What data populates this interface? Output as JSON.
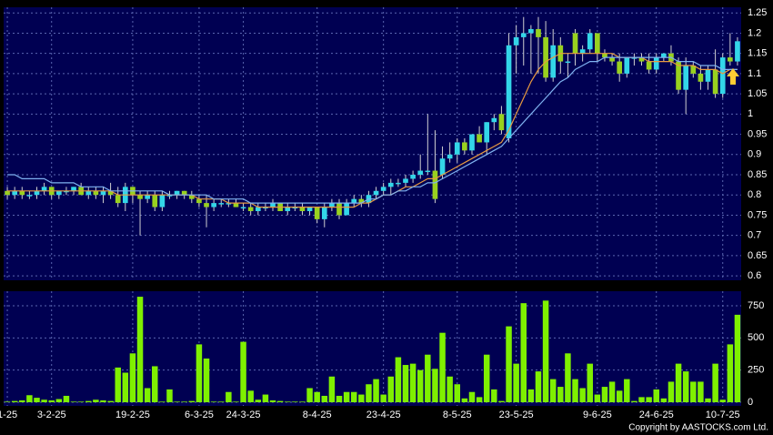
{
  "chart_data": [
    {
      "type": "candlestick",
      "categories": [
        "1-25",
        null,
        null,
        null,
        null,
        null,
        "3-2-25",
        null,
        null,
        null,
        null,
        null,
        null,
        null,
        null,
        null,
        null,
        "19-2-25",
        null,
        null,
        null,
        null,
        null,
        null,
        null,
        null,
        "6-3-25",
        null,
        null,
        null,
        null,
        null,
        "24-3-25",
        null,
        null,
        null,
        null,
        null,
        null,
        null,
        null,
        null,
        "8-4-25",
        null,
        null,
        null,
        null,
        null,
        null,
        null,
        null,
        "23-4-25",
        null,
        null,
        null,
        null,
        null,
        null,
        null,
        null,
        null,
        "8-5-25",
        null,
        null,
        null,
        null,
        null,
        null,
        null,
        "23-5-25",
        null,
        null,
        null,
        null,
        null,
        null,
        null,
        null,
        null,
        null,
        "9-6-25",
        null,
        null,
        null,
        null,
        null,
        null,
        null,
        "24-6-25",
        null,
        null,
        null,
        null,
        null,
        null,
        null,
        null,
        "10-7-25",
        null,
        null
      ],
      "open": [
        0.81,
        0.8,
        0.81,
        0.8,
        0.8,
        0.81,
        0.82,
        0.8,
        0.81,
        0.81,
        0.82,
        0.8,
        0.81,
        0.8,
        0.81,
        0.8,
        0.78,
        0.82,
        0.8,
        0.79,
        0.8,
        0.77,
        0.8,
        0.8,
        0.81,
        0.8,
        0.79,
        0.78,
        0.77,
        0.78,
        0.78,
        0.78,
        0.77,
        0.77,
        0.76,
        0.77,
        0.77,
        0.78,
        0.76,
        0.77,
        0.77,
        0.76,
        0.77,
        0.74,
        0.77,
        0.78,
        0.75,
        0.78,
        0.79,
        0.78,
        0.8,
        0.81,
        0.82,
        0.83,
        0.83,
        0.84,
        0.85,
        0.86,
        0.86,
        0.85,
        0.89,
        0.9,
        0.93,
        0.91,
        0.95,
        0.93,
        0.98,
        1.0,
        0.94,
        1.17,
        1.19,
        1.2,
        1.21,
        1.19,
        1.09,
        1.17,
        1.13,
        1.2,
        1.15,
        1.16,
        1.2,
        1.15,
        1.14,
        1.13,
        1.1,
        1.14,
        1.14,
        1.13,
        1.11,
        1.14,
        1.15,
        1.13,
        1.06,
        1.12,
        1.1,
        1.08,
        1.11,
        1.05,
        1.14,
        1.13
      ],
      "high": [
        0.82,
        0.82,
        0.82,
        0.81,
        0.82,
        0.83,
        0.82,
        0.81,
        0.82,
        0.82,
        0.83,
        0.82,
        0.82,
        0.82,
        0.83,
        0.82,
        0.83,
        0.82,
        0.81,
        0.81,
        0.81,
        0.81,
        0.81,
        0.81,
        0.81,
        0.81,
        0.8,
        0.8,
        0.79,
        0.79,
        0.79,
        0.79,
        0.78,
        0.78,
        0.78,
        0.78,
        0.79,
        0.78,
        0.78,
        0.78,
        0.78,
        0.77,
        0.77,
        0.78,
        0.79,
        0.79,
        0.79,
        0.8,
        0.8,
        0.81,
        0.82,
        0.83,
        0.84,
        0.84,
        0.85,
        0.86,
        0.9,
        1.0,
        0.96,
        0.92,
        0.93,
        0.94,
        0.94,
        0.95,
        0.97,
        0.98,
        1.0,
        1.02,
        1.2,
        1.22,
        1.24,
        1.22,
        1.24,
        1.23,
        1.21,
        1.19,
        1.15,
        1.21,
        1.17,
        1.21,
        1.2,
        1.16,
        1.15,
        1.15,
        1.14,
        1.15,
        1.15,
        1.15,
        1.15,
        1.15,
        1.17,
        1.14,
        1.14,
        1.13,
        1.12,
        1.12,
        1.16,
        1.15,
        1.2,
        1.19
      ],
      "low": [
        0.79,
        0.79,
        0.79,
        0.79,
        0.79,
        0.8,
        0.79,
        0.79,
        0.8,
        0.8,
        0.8,
        0.79,
        0.79,
        0.78,
        0.79,
        0.77,
        0.76,
        0.78,
        0.7,
        0.78,
        0.76,
        0.76,
        0.79,
        0.79,
        0.79,
        0.78,
        0.77,
        0.72,
        0.76,
        0.77,
        0.77,
        0.77,
        0.76,
        0.75,
        0.75,
        0.76,
        0.76,
        0.76,
        0.75,
        0.76,
        0.75,
        0.75,
        0.73,
        0.72,
        0.76,
        0.74,
        0.75,
        0.77,
        0.77,
        0.77,
        0.79,
        0.8,
        0.8,
        0.82,
        0.82,
        0.83,
        0.84,
        0.85,
        0.78,
        0.84,
        0.88,
        0.88,
        0.9,
        0.9,
        0.93,
        0.9,
        0.96,
        0.95,
        0.93,
        1.1,
        1.12,
        1.1,
        1.1,
        1.08,
        1.08,
        1.1,
        1.09,
        1.12,
        1.13,
        1.15,
        1.13,
        1.13,
        1.12,
        1.08,
        1.09,
        1.12,
        1.12,
        1.1,
        1.1,
        1.13,
        1.12,
        1.05,
        1.0,
        1.09,
        1.06,
        1.06,
        1.04,
        1.04,
        1.12,
        1.12
      ],
      "close": [
        0.8,
        0.81,
        0.8,
        0.8,
        0.81,
        0.82,
        0.8,
        0.81,
        0.81,
        0.82,
        0.8,
        0.81,
        0.8,
        0.81,
        0.8,
        0.78,
        0.82,
        0.8,
        0.79,
        0.8,
        0.77,
        0.8,
        0.8,
        0.81,
        0.8,
        0.79,
        0.78,
        0.77,
        0.78,
        0.78,
        0.78,
        0.77,
        0.77,
        0.76,
        0.77,
        0.77,
        0.78,
        0.76,
        0.77,
        0.77,
        0.76,
        0.77,
        0.74,
        0.77,
        0.78,
        0.75,
        0.78,
        0.79,
        0.78,
        0.8,
        0.81,
        0.82,
        0.83,
        0.83,
        0.84,
        0.85,
        0.86,
        0.86,
        0.79,
        0.89,
        0.9,
        0.93,
        0.91,
        0.95,
        0.93,
        0.98,
        0.99,
        0.96,
        1.17,
        1.19,
        1.2,
        1.21,
        1.19,
        1.09,
        1.17,
        1.13,
        1.13,
        1.15,
        1.16,
        1.2,
        1.15,
        1.14,
        1.13,
        1.1,
        1.14,
        1.14,
        1.13,
        1.11,
        1.14,
        1.15,
        1.13,
        1.06,
        1.12,
        1.1,
        1.08,
        1.11,
        1.05,
        1.14,
        1.13,
        1.18
      ],
      "up_color": "#33d6e8",
      "down_color": "#99d11f",
      "moving_averages": [
        {
          "color": "#e89a40",
          "values": [
            0.81,
            0.81,
            0.81,
            0.81,
            0.81,
            0.81,
            0.81,
            0.81,
            0.81,
            0.81,
            0.81,
            0.81,
            0.81,
            0.81,
            0.81,
            0.8,
            0.8,
            0.8,
            0.8,
            0.8,
            0.8,
            0.8,
            0.8,
            0.8,
            0.8,
            0.8,
            0.79,
            0.79,
            0.79,
            0.79,
            0.78,
            0.78,
            0.78,
            0.78,
            0.77,
            0.77,
            0.77,
            0.77,
            0.77,
            0.77,
            0.77,
            0.77,
            0.77,
            0.77,
            0.77,
            0.77,
            0.77,
            0.77,
            0.78,
            0.78,
            0.79,
            0.8,
            0.8,
            0.81,
            0.82,
            0.82,
            0.83,
            0.84,
            0.84,
            0.85,
            0.86,
            0.87,
            0.88,
            0.89,
            0.9,
            0.91,
            0.92,
            0.93,
            0.96,
            1.0,
            1.04,
            1.08,
            1.11,
            1.13,
            1.14,
            1.15,
            1.15,
            1.15,
            1.15,
            1.15,
            1.15,
            1.15,
            1.15,
            1.14,
            1.14,
            1.14,
            1.14,
            1.13,
            1.13,
            1.13,
            1.13,
            1.12,
            1.12,
            1.12,
            1.11,
            1.11,
            1.11,
            1.1,
            1.11,
            1.11
          ]
        },
        {
          "color": "#7fb2f0",
          "values": [
            0.85,
            0.85,
            0.84,
            0.84,
            0.84,
            0.84,
            0.83,
            0.83,
            0.83,
            0.83,
            0.82,
            0.82,
            0.82,
            0.82,
            0.81,
            0.81,
            0.81,
            0.81,
            0.81,
            0.81,
            0.81,
            0.81,
            0.8,
            0.8,
            0.8,
            0.8,
            0.8,
            0.8,
            0.79,
            0.79,
            0.79,
            0.79,
            0.79,
            0.78,
            0.78,
            0.78,
            0.78,
            0.78,
            0.78,
            0.78,
            0.78,
            0.78,
            0.78,
            0.78,
            0.78,
            0.78,
            0.78,
            0.78,
            0.78,
            0.79,
            0.79,
            0.8,
            0.8,
            0.81,
            0.81,
            0.82,
            0.82,
            0.83,
            0.83,
            0.84,
            0.85,
            0.86,
            0.87,
            0.88,
            0.89,
            0.9,
            0.91,
            0.92,
            0.94,
            0.96,
            0.98,
            1.0,
            1.02,
            1.04,
            1.06,
            1.08,
            1.09,
            1.11,
            1.12,
            1.13,
            1.13,
            1.14,
            1.14,
            1.14,
            1.14,
            1.14,
            1.14,
            1.14,
            1.14,
            1.14,
            1.14,
            1.13,
            1.13,
            1.13,
            1.12,
            1.12,
            1.12,
            1.11,
            1.11,
            1.11
          ]
        }
      ],
      "ylim": [
        0.589,
        1.264
      ],
      "yticks": [
        0.6,
        0.65,
        0.7,
        0.75,
        0.8,
        0.85,
        0.9,
        0.95,
        1,
        1.05,
        1.1,
        1.15,
        1.2,
        1.25
      ],
      "grid": true
    },
    {
      "type": "bar",
      "values": [
        5,
        10,
        15,
        55,
        35,
        20,
        15,
        25,
        50,
        5,
        5,
        10,
        20,
        15,
        10,
        270,
        230,
        380,
        820,
        110,
        280,
        5,
        100,
        5,
        5,
        10,
        450,
        340,
        5,
        5,
        80,
        5,
        470,
        90,
        20,
        60,
        15,
        10,
        5,
        5,
        5,
        110,
        80,
        50,
        200,
        50,
        80,
        80,
        60,
        140,
        180,
        60,
        200,
        350,
        290,
        300,
        250,
        370,
        260,
        540,
        200,
        140,
        30,
        80,
        40,
        370,
        100,
        10,
        590,
        300,
        770,
        100,
        240,
        790,
        180,
        120,
        380,
        180,
        110,
        300,
        60,
        120,
        160,
        90,
        180,
        10,
        40,
        40,
        100,
        30,
        160,
        300,
        240,
        160,
        160,
        30,
        300,
        20,
        450,
        680
      ],
      "color": "#7ff000",
      "ylim": [
        -28,
        863
      ],
      "yticks": [
        0,
        250,
        500,
        750
      ],
      "grid": true
    },
    {
      "type": "text",
      "copyright": "Copyright by AASTOCKS.com Ltd."
    }
  ]
}
